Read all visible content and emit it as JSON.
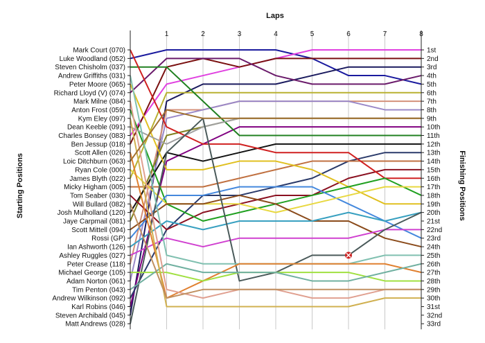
{
  "chart_data": {
    "type": "line",
    "title": "Laps",
    "ylabel_left": "Starting Positions",
    "ylabel_right": "Finishing Positions",
    "x": [
      0,
      1,
      2,
      3,
      4,
      5,
      6,
      7,
      8
    ],
    "x_tick_labels": [
      "1",
      "2",
      "3",
      "4",
      "5",
      "6",
      "7",
      "8"
    ],
    "start_labels": [
      "Mark Court (070)",
      "Luke Woodland (052)",
      "Steven Chisholm (037)",
      "Andrew Griffiths (031)",
      "Peter Moore (065)",
      "Richard Lloyd (V) (074)",
      "Mark Milne (084)",
      "Anton Frost (059)",
      "Kym Eley (097)",
      "Dean Keeble (091)",
      "Charles Bonsey (083)",
      "Ben Jessup (018)",
      "Scott Allen (026)",
      "Loic Ditchburn (063)",
      "Ryan Cole (000)",
      "James Blyth (022)",
      "Micky Higham (005)",
      "Tom Seaber (030)",
      "Will Bullard (082)",
      "Josh Mulholland (120)",
      "Jaye Carpmail (081)",
      "Scott Mittell (094)",
      "Rossi (GP)",
      "Ian Ashworth (126)",
      "Ashley Ruggles (027)",
      "Peter Crease (118)",
      "Michael George (105)",
      "Adam Norton (061)",
      "Tim Penton (043)",
      "Andrew Wilkinson (092)",
      "Karl Robins (046)",
      "Steven Archibald (045)",
      "Matt Andrews (028)"
    ],
    "finish_labels": [
      "1st",
      "2nd",
      "3rd",
      "4th",
      "5th",
      "6th",
      "7th",
      "8th",
      "9th",
      "10th",
      "11th",
      "12th",
      "13th",
      "14th",
      "15th",
      "16th",
      "17th",
      "18th",
      "19th",
      "20th",
      "21st",
      "22nd",
      "23rd",
      "24th",
      "25th",
      "26th",
      "27th",
      "28th",
      "29th",
      "30th",
      "31st",
      "32nd",
      "33rd"
    ],
    "series": [
      {
        "color": "#1a1a9e",
        "values": [
          2,
          1,
          1,
          1,
          1,
          2,
          4,
          4,
          5
        ]
      },
      {
        "color": "#e040e0",
        "values": [
          11,
          5,
          4,
          3,
          2,
          1,
          1,
          1,
          1
        ]
      },
      {
        "color": "#7a1010",
        "values": [
          12,
          3,
          2,
          3,
          2,
          2,
          2,
          2,
          2
        ]
      },
      {
        "color": "#1a1a5e",
        "values": [
          32,
          7,
          5,
          5,
          5,
          4,
          3,
          3,
          3
        ]
      },
      {
        "color": "#6a1a6a",
        "values": [
          6,
          2,
          2,
          2,
          4,
          5,
          5,
          5,
          4
        ]
      },
      {
        "color": "#b8b030",
        "values": [
          16,
          6,
          6,
          6,
          6,
          6,
          6,
          6,
          6
        ]
      },
      {
        "color": "#d4907a",
        "values": [
          26,
          8,
          8,
          7,
          7,
          7,
          7,
          7,
          7
        ]
      },
      {
        "color": "#9a88c8",
        "values": [
          28,
          9,
          8,
          7,
          7,
          7,
          7,
          8,
          8
        ]
      },
      {
        "color": "#808020",
        "values": [
          21,
          11,
          10,
          9,
          9,
          9,
          9,
          9,
          9
        ]
      },
      {
        "color": "#800080",
        "values": [
          31,
          14,
          12,
          10,
          10,
          10,
          10,
          10,
          10
        ]
      },
      {
        "color": "#208020",
        "values": [
          3,
          3,
          7,
          11,
          11,
          11,
          11,
          11,
          11
        ]
      },
      {
        "color": "#111111",
        "values": [
          20,
          13,
          14,
          13,
          12,
          12,
          12,
          12,
          12
        ]
      },
      {
        "color": "#2a3a6a",
        "values": [
          30,
          22,
          18,
          18,
          17,
          16,
          14,
          13,
          13
        ]
      },
      {
        "color": "#c07040",
        "values": [
          17,
          17,
          17,
          16,
          15,
          14,
          14,
          14,
          14
        ]
      },
      {
        "color": "#8a1020",
        "values": [
          18,
          22,
          20,
          19,
          18,
          18,
          16,
          15,
          15
        ]
      },
      {
        "color": "#d02020",
        "values": [
          1,
          10,
          12,
          12,
          13,
          13,
          13,
          16,
          16
        ]
      },
      {
        "color": "#e0c020",
        "values": [
          5,
          15,
          15,
          14,
          14,
          15,
          17,
          19,
          19
        ]
      },
      {
        "color": "#20a020",
        "values": [
          8,
          19,
          21,
          20,
          19,
          18,
          17,
          16,
          18
        ]
      },
      {
        "color": "#4488dd",
        "values": [
          23,
          18,
          18,
          17,
          17,
          17,
          19,
          21,
          23
        ]
      },
      {
        "color": "#e8d840",
        "values": [
          15,
          19,
          19,
          19,
          20,
          19,
          18,
          17,
          17
        ]
      },
      {
        "color": "#8a4a1a",
        "values": [
          22,
          19,
          19,
          18,
          19,
          21,
          21,
          23,
          24
        ]
      },
      {
        "color": "#38a0c0",
        "values": [
          24,
          21,
          22,
          21,
          21,
          21,
          20,
          21,
          20
        ]
      },
      {
        "color": "#a0a0a0",
        "values": [
          10,
          12,
          10,
          9,
          9,
          9,
          9,
          9,
          9
        ]
      },
      {
        "color": "#d040d0",
        "values": [
          25,
          23,
          24,
          23,
          23,
          23,
          23,
          22,
          22
        ]
      },
      {
        "color": "#4a5a5a",
        "values": [
          33,
          13,
          9,
          28,
          27,
          25,
          25,
          22,
          20
        ]
      },
      {
        "color": "#80c0b0",
        "values": [
          4,
          25,
          26,
          26,
          26,
          26,
          26,
          25,
          25
        ]
      },
      {
        "color": "#e08030",
        "values": [
          13,
          30,
          28,
          26,
          26,
          26,
          26,
          26,
          27
        ]
      },
      {
        "color": "#a0e040",
        "values": [
          27,
          27,
          28,
          27,
          27,
          27,
          27,
          28,
          28
        ]
      },
      {
        "color": "#70b0a0",
        "values": [
          29,
          26,
          27,
          27,
          27,
          28,
          28,
          27,
          26
        ]
      },
      {
        "color": "#e0a090",
        "values": [
          7,
          29,
          30,
          29,
          29,
          30,
          30,
          29,
          29
        ]
      },
      {
        "color": "#d0b050",
        "values": [
          9,
          31,
          31,
          31,
          31,
          31,
          31,
          30,
          30
        ]
      },
      {
        "color": "#c09060",
        "values": [
          19,
          30,
          29,
          29,
          29,
          29,
          29,
          29,
          29
        ]
      },
      {
        "color": "#a07030",
        "values": [
          14,
          8,
          9,
          9,
          9,
          9,
          9,
          9,
          9
        ]
      }
    ],
    "retirements": [
      {
        "color": "#e08030",
        "last_lap": 6,
        "position": 25
      }
    ],
    "grid": "vertical"
  }
}
